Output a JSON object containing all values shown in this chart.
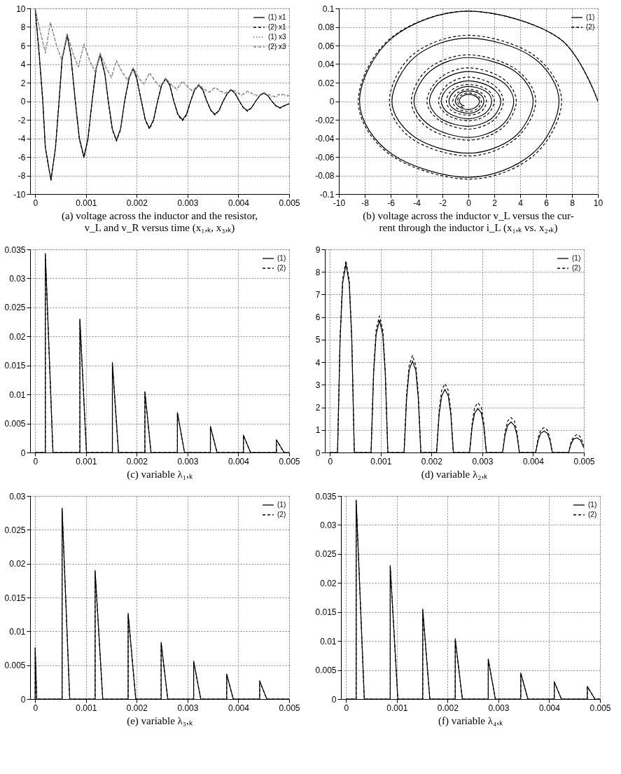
{
  "chart_data": [
    {
      "type": "line",
      "title": "(a) voltage across the inductor and the resistor,\nv_L and v_R versus time (x₁,ₖ, x₃,ₖ)",
      "xlim": [
        -0.0001,
        0.005
      ],
      "xticks": [
        0,
        0.001,
        0.002,
        0.003,
        0.004,
        0.005
      ],
      "ylim": [
        -10,
        10
      ],
      "yticks": [
        -10,
        -8,
        -6,
        -4,
        -2,
        0,
        2,
        4,
        6,
        8,
        10
      ],
      "grid": true,
      "legend": "top right",
      "x": [
        0,
        8e-05,
        0.00015,
        0.0002,
        0.00031,
        0.0004,
        0.00047,
        0.00053,
        0.00063,
        0.0007,
        0.00079,
        0.00087,
        0.00096,
        0.00104,
        0.00112,
        0.0012,
        0.00128,
        0.00137,
        0.00144,
        0.00152,
        0.0016,
        0.00168,
        0.00176,
        0.00185,
        0.00193,
        0.002,
        0.00209,
        0.00217,
        0.00225,
        0.00233,
        0.00241,
        0.00249,
        0.00257,
        0.00265,
        0.00273,
        0.00281,
        0.0029,
        0.00298,
        0.00306,
        0.00314,
        0.00322,
        0.0033,
        0.00338,
        0.00346,
        0.00354,
        0.00362,
        0.0037,
        0.00378,
        0.00386,
        0.00394,
        0.00402,
        0.0041,
        0.00418,
        0.00426,
        0.00434,
        0.00442,
        0.0045,
        0.00458,
        0.00466,
        0.00474,
        0.00482,
        0.0049,
        0.005
      ],
      "series": [
        {
          "name": "(1) x1",
          "color": "#000000",
          "line_style": "solid",
          "values": [
            10,
            5,
            0,
            -5,
            -8.5,
            -5,
            0,
            4.5,
            7.1,
            5,
            0,
            -4,
            -6.0,
            -4,
            0,
            3.5,
            5.0,
            3,
            0,
            -3,
            -4.2,
            -3,
            0,
            2.5,
            3.5,
            2.4,
            0,
            -2,
            -2.9,
            -2,
            0,
            1.7,
            2.4,
            1.7,
            0,
            -1.4,
            -2.0,
            -1.4,
            0,
            1.2,
            1.7,
            1.2,
            0,
            -1.0,
            -1.4,
            -1.0,
            0,
            0.8,
            1.2,
            0.8,
            0,
            -0.7,
            -1.0,
            -0.7,
            0,
            0.6,
            0.85,
            0.6,
            0,
            -0.5,
            -0.7,
            -0.5,
            -0.25
          ]
        },
        {
          "name": "(2) x1",
          "color": "#000000",
          "line_style": "dashed",
          "values": [
            10,
            5,
            0,
            -5,
            -8.5,
            -5,
            0,
            4.5,
            7.2,
            5,
            0,
            -4.1,
            -6.1,
            -4.1,
            0,
            3.6,
            5.1,
            3,
            0,
            -3.1,
            -4.3,
            -3.1,
            0,
            2.5,
            3.6,
            2.5,
            0,
            -2.1,
            -3.0,
            -2.1,
            0,
            1.8,
            2.5,
            1.8,
            0,
            -1.5,
            -2.1,
            -1.5,
            0,
            1.3,
            1.8,
            1.3,
            0,
            -1.0,
            -1.5,
            -1.0,
            0,
            0.8,
            1.3,
            0.8,
            0,
            -0.7,
            -1.1,
            -0.7,
            0,
            0.6,
            0.9,
            0.6,
            0,
            -0.5,
            -0.75,
            -0.5,
            -0.3
          ]
        },
        {
          "name": "(1) x3",
          "color": "#808080",
          "line_style": "dotted",
          "x": [
            0,
            0.0001,
            0.0002,
            0.0003,
            0.00042,
            0.00052,
            0.00063,
            0.00075,
            0.00085,
            0.00096,
            0.00108,
            0.00118,
            0.00128,
            0.0014,
            0.0015,
            0.0016,
            0.00172,
            0.00182,
            0.00193,
            0.00204,
            0.00214,
            0.00225,
            0.00236,
            0.00246,
            0.00257,
            0.00268,
            0.00279,
            0.0029,
            0.003,
            0.0031,
            0.00322,
            0.00333,
            0.00343,
            0.00354,
            0.00365,
            0.00375,
            0.00386,
            0.00397,
            0.00407,
            0.00418,
            0.00429,
            0.00439,
            0.0045,
            0.00461,
            0.00472,
            0.00482,
            0.005
          ],
          "values": [
            10,
            7.5,
            5.2,
            8.5,
            6.0,
            4.4,
            7.2,
            5.0,
            3.6,
            6.1,
            4.2,
            3.1,
            5.1,
            3.5,
            2.5,
            4.3,
            3.0,
            2.2,
            3.5,
            2.4,
            1.8,
            3.0,
            2.1,
            1.5,
            2.4,
            1.7,
            1.2,
            2.1,
            1.5,
            1.0,
            1.7,
            1.2,
            0.9,
            1.4,
            1.0,
            0.8,
            1.2,
            0.9,
            0.6,
            1.0,
            0.7,
            0.5,
            0.85,
            0.6,
            0.4,
            0.7,
            0.5
          ]
        },
        {
          "name": "(2) x3",
          "color": "#808080",
          "line_style": "dashed",
          "x": [
            0,
            0.0001,
            0.0002,
            0.0003,
            0.00042,
            0.00052,
            0.00063,
            0.00075,
            0.00085,
            0.00096,
            0.00108,
            0.00118,
            0.00128,
            0.0014,
            0.0015,
            0.0016,
            0.00172,
            0.00182,
            0.00193,
            0.00204,
            0.00214,
            0.00225,
            0.00236,
            0.00246,
            0.00257,
            0.00268,
            0.00279,
            0.0029,
            0.003,
            0.0031,
            0.00322,
            0.00333,
            0.00343,
            0.00354,
            0.00365,
            0.00375,
            0.00386,
            0.00397,
            0.00407,
            0.00418,
            0.00429,
            0.00439,
            0.0045,
            0.00461,
            0.00472,
            0.00482,
            0.005
          ],
          "values": [
            10,
            7.5,
            5.2,
            8.5,
            6.0,
            4.5,
            7.3,
            5.1,
            3.7,
            6.2,
            4.3,
            3.2,
            5.2,
            3.6,
            2.6,
            4.4,
            3.1,
            2.3,
            3.6,
            2.5,
            1.9,
            3.1,
            2.2,
            1.6,
            2.5,
            1.8,
            1.3,
            2.2,
            1.6,
            1.1,
            1.8,
            1.3,
            1.0,
            1.5,
            1.1,
            0.9,
            1.3,
            1.0,
            0.7,
            1.1,
            0.8,
            0.6,
            0.95,
            0.7,
            0.5,
            0.8,
            0.6
          ]
        }
      ]
    },
    {
      "type": "line",
      "title": "(b) voltage across the inductor v_L versus the cur-\nrent through the inductor i_L (x₁,ₖ vs. x₂,ₖ)",
      "xlim": [
        -10,
        10
      ],
      "xticks": [
        -10,
        -8,
        -6,
        -4,
        -2,
        0,
        2,
        4,
        6,
        8,
        10
      ],
      "ylim": [
        -0.1,
        0.1
      ],
      "yticks": [
        -0.1,
        -0.08,
        -0.06,
        -0.04,
        -0.02,
        0,
        0.02,
        0.04,
        0.06,
        0.08,
        0.1
      ],
      "grid": true,
      "legend": "top right",
      "series": [
        {
          "name": "(1)",
          "color": "#000000",
          "line_style": "solid",
          "x": [
            10,
            7,
            0,
            -5.9,
            -8.4,
            -5.9,
            0,
            4.9,
            7.0,
            4.9,
            0,
            -4.1,
            -5.9,
            -4.1,
            0,
            3.5,
            5.0,
            3.5,
            0,
            -2.9,
            -4.2,
            -2.9,
            0,
            2.5,
            3.5,
            2.5,
            0,
            -2.1,
            -3.0,
            -2.1,
            0,
            1.75,
            2.5,
            1.75,
            0,
            -1.5,
            -2.1,
            -1.5,
            0,
            1.3,
            1.8,
            1.3,
            0,
            -1.05,
            -1.5,
            -1.05,
            0,
            0.85,
            1.2,
            0.85,
            0,
            -0.7,
            -1.0,
            -0.7,
            0,
            0.6,
            0.85,
            0.6,
            0,
            -0.5,
            -0.7,
            -0.5,
            -0.3
          ],
          "values": [
            0,
            0.068,
            0.097,
            0.068,
            0,
            -0.057,
            -0.082,
            -0.057,
            0,
            0.048,
            0.068,
            0.048,
            0,
            -0.039,
            -0.056,
            -0.039,
            0,
            0.033,
            0.047,
            0.033,
            0,
            -0.027,
            -0.039,
            -0.027,
            0,
            0.022,
            0.032,
            0.022,
            0,
            -0.019,
            -0.027,
            -0.019,
            0,
            0.015,
            0.022,
            0.015,
            0,
            -0.013,
            -0.019,
            -0.013,
            0,
            0.011,
            0.016,
            0.011,
            0,
            -0.009,
            -0.013,
            -0.009,
            0,
            0.008,
            0.011,
            0.008,
            0,
            -0.006,
            -0.009,
            -0.006,
            0,
            0.005,
            0.0075,
            0.005,
            0,
            -0.004,
            -0.005
          ]
        },
        {
          "name": "(2)",
          "color": "#000000",
          "line_style": "dashed",
          "x": [
            10,
            7,
            0,
            -6.0,
            -8.5,
            -6.0,
            0,
            5.0,
            7.2,
            5.0,
            0,
            -4.3,
            -6.1,
            -4.3,
            0,
            3.6,
            5.2,
            3.6,
            0,
            -3.1,
            -4.4,
            -3.1,
            0,
            2.6,
            3.7,
            2.6,
            0,
            -2.2,
            -3.2,
            -2.2,
            0,
            1.9,
            2.7,
            1.9,
            0,
            -1.6,
            -2.3,
            -1.6,
            0,
            1.4,
            2.0,
            1.4,
            0,
            -1.2,
            -1.7,
            -1.2,
            0,
            1.0,
            1.4,
            1.0,
            0,
            -0.85,
            -1.2,
            -0.85,
            0,
            0.7,
            1.0,
            0.7,
            0,
            -0.6,
            -0.85,
            -0.6,
            -0.4
          ],
          "values": [
            0,
            0.068,
            0.097,
            0.068,
            0,
            -0.058,
            -0.084,
            -0.059,
            0,
            0.05,
            0.071,
            0.05,
            0,
            -0.041,
            -0.059,
            -0.041,
            0,
            0.035,
            0.05,
            0.035,
            0,
            -0.029,
            -0.042,
            -0.029,
            0,
            0.025,
            0.036,
            0.025,
            0,
            -0.021,
            -0.03,
            -0.021,
            0,
            0.018,
            0.026,
            0.018,
            0,
            -0.015,
            -0.021,
            -0.015,
            0,
            0.013,
            0.018,
            0.013,
            0,
            -0.011,
            -0.015,
            -0.011,
            0,
            0.009,
            0.013,
            0.009,
            0,
            -0.008,
            -0.011,
            -0.008,
            0,
            0.006,
            0.009,
            0.006,
            0,
            -0.005,
            -0.007
          ]
        }
      ]
    },
    {
      "type": "line",
      "title": "(c) variable λ₁,ₖ",
      "xlim": [
        -0.0001,
        0.005
      ],
      "xticks": [
        0,
        0.001,
        0.002,
        0.003,
        0.004,
        0.005
      ],
      "ylim": [
        0,
        0.035
      ],
      "yticks": [
        0,
        0.005,
        0.01,
        0.015,
        0.02,
        0.025,
        0.03,
        0.035
      ],
      "grid": true,
      "legend": "top right",
      "x": [
        0,
        0.0002,
        0.0002,
        0.00035,
        0.00088,
        0.00088,
        0.00101,
        0.00152,
        0.00152,
        0.00164,
        0.00216,
        0.00216,
        0.00228,
        0.0028,
        0.0028,
        0.00294,
        0.00345,
        0.00345,
        0.00358,
        0.0041,
        0.0041,
        0.00424,
        0.00475,
        0.00475,
        0.0049,
        0.005
      ],
      "series": [
        {
          "name": "(1)",
          "color": "#000000",
          "line_style": "solid",
          "values": [
            0,
            0,
            0.0343,
            0,
            0,
            0.023,
            0,
            0,
            0.0155,
            0,
            0,
            0.0105,
            0,
            0,
            0.0069,
            0,
            0,
            0.0045,
            0,
            0,
            0.003,
            0,
            0,
            0.0022,
            0,
            0
          ]
        },
        {
          "name": "(2)",
          "color": "#000000",
          "line_style": "dashed",
          "values": [
            0,
            0,
            0.034,
            0,
            0,
            0.0228,
            0,
            0,
            0.0153,
            0,
            0,
            0.0103,
            0,
            0,
            0.0068,
            0,
            0,
            0.0044,
            0,
            0,
            0.0029,
            0,
            0,
            0.0021,
            0,
            0
          ]
        }
      ]
    },
    {
      "type": "line",
      "title": "(d) variable λ₂,ₖ",
      "xlim": [
        -0.0001,
        0.005
      ],
      "xticks": [
        0,
        0.001,
        0.002,
        0.003,
        0.004,
        0.005
      ],
      "ylim": [
        0,
        9
      ],
      "yticks": [
        0,
        1,
        2,
        3,
        4,
        5,
        6,
        7,
        8,
        9
      ],
      "grid": true,
      "legend": "top right",
      "x": [
        0,
        0.00015,
        0.0002,
        0.00025,
        0.000315,
        0.00038,
        0.00043,
        0.00048,
        0.00081,
        0.00086,
        0.00091,
        0.000975,
        0.00104,
        0.00109,
        0.00114,
        0.00146,
        0.00151,
        0.00156,
        0.001625,
        0.00169,
        0.00174,
        0.00179,
        0.0021,
        0.00215,
        0.0022,
        0.002265,
        0.00233,
        0.00238,
        0.00243,
        0.00275,
        0.0028,
        0.00285,
        0.002915,
        0.00298,
        0.00303,
        0.00308,
        0.0034,
        0.00345,
        0.0035,
        0.003565,
        0.00363,
        0.00368,
        0.00373,
        0.00405,
        0.0041,
        0.00415,
        0.004215,
        0.00428,
        0.00433,
        0.00438,
        0.0047,
        0.00475,
        0.0048,
        0.004865,
        0.00493,
        0.005
      ],
      "series": [
        {
          "name": "(1)",
          "color": "#000000",
          "line_style": "solid",
          "values": [
            0,
            0,
            5.0,
            7.5,
            8.35,
            7.5,
            5.0,
            0,
            0,
            3.5,
            5.25,
            5.85,
            5.25,
            3.5,
            0,
            0,
            2.4,
            3.65,
            4.05,
            3.65,
            2.4,
            0,
            0,
            1.7,
            2.5,
            2.8,
            2.5,
            1.7,
            0,
            0,
            1.15,
            1.75,
            1.95,
            1.75,
            1.15,
            0,
            0,
            0.8,
            1.2,
            1.35,
            1.2,
            0.8,
            0,
            0,
            0.55,
            0.85,
            0.95,
            0.85,
            0.55,
            0,
            0,
            0.4,
            0.6,
            0.65,
            0.55,
            0.2
          ]
        },
        {
          "name": "(2)",
          "color": "#000000",
          "line_style": "dashed",
          "values": [
            0,
            0,
            5.1,
            7.65,
            8.5,
            7.65,
            5.1,
            0,
            0,
            3.6,
            5.45,
            6.05,
            5.45,
            3.6,
            0,
            0,
            2.6,
            3.85,
            4.3,
            3.85,
            2.6,
            0,
            0,
            1.85,
            2.75,
            3.05,
            2.75,
            1.85,
            0,
            0,
            1.3,
            2.0,
            2.2,
            2.0,
            1.3,
            0,
            0,
            0.95,
            1.4,
            1.55,
            1.4,
            0.95,
            0,
            0,
            0.65,
            1.0,
            1.1,
            1.0,
            0.65,
            0,
            0,
            0.5,
            0.7,
            0.8,
            0.7,
            0.3
          ]
        }
      ]
    },
    {
      "type": "line",
      "title": "(e) variable λ₃,ₖ",
      "xlim": [
        -0.0001,
        0.005
      ],
      "xticks": [
        0,
        0.001,
        0.002,
        0.003,
        0.004,
        0.005
      ],
      "ylim": [
        0,
        0.03
      ],
      "yticks": [
        0,
        0.005,
        0.01,
        0.015,
        0.02,
        0.025,
        0.03
      ],
      "grid": true,
      "legend": "top right",
      "x": [
        0,
        0,
        3e-05,
        0.00053,
        0.00053,
        0.00068,
        0.00118,
        0.00118,
        0.00133,
        0.00183,
        0.00183,
        0.00198,
        0.00248,
        0.00248,
        0.00261,
        0.00312,
        0.00312,
        0.00326,
        0.00377,
        0.00377,
        0.0039,
        0.00442,
        0.00442,
        0.00456,
        0.005
      ],
      "series": [
        {
          "name": "(1)",
          "color": "#000000",
          "line_style": "solid",
          "values": [
            0,
            0.0076,
            0,
            0,
            0.0282,
            0,
            0,
            0.019,
            0,
            0,
            0.0127,
            0,
            0,
            0.0084,
            0,
            0,
            0.0056,
            0,
            0,
            0.0037,
            0,
            0,
            0.0027,
            0,
            0
          ]
        },
        {
          "name": "(2)",
          "color": "#000000",
          "line_style": "dashed",
          "values": [
            0,
            0.0075,
            0,
            0,
            0.028,
            0,
            0,
            0.0188,
            0,
            0,
            0.0125,
            0,
            0,
            0.0082,
            0,
            0,
            0.0055,
            0,
            0,
            0.0036,
            0,
            0,
            0.0026,
            0,
            0
          ]
        }
      ]
    },
    {
      "type": "line",
      "title": "(f) variable λ₄,ₖ",
      "xlim": [
        -0.0001,
        0.005
      ],
      "xticks": [
        0,
        0.001,
        0.002,
        0.003,
        0.004,
        0.005
      ],
      "ylim": [
        0,
        0.035
      ],
      "yticks": [
        0,
        0.005,
        0.01,
        0.015,
        0.02,
        0.025,
        0.03,
        0.035
      ],
      "grid": true,
      "legend": "top right",
      "x": [
        0,
        0.0002,
        0.0002,
        0.00036,
        0.00087,
        0.00087,
        0.00102,
        0.00151,
        0.00151,
        0.00165,
        0.00215,
        0.00215,
        0.00229,
        0.0028,
        0.0028,
        0.00294,
        0.00344,
        0.00344,
        0.00358,
        0.0041,
        0.0041,
        0.00424,
        0.00475,
        0.00475,
        0.0049,
        0.005
      ],
      "series": [
        {
          "name": "(1)",
          "color": "#000000",
          "line_style": "solid",
          "values": [
            0,
            0,
            0.0343,
            0,
            0,
            0.023,
            0,
            0,
            0.0155,
            0,
            0,
            0.0104,
            0,
            0,
            0.0069,
            0,
            0,
            0.0045,
            0,
            0,
            0.003,
            0,
            0,
            0.0022,
            0,
            0
          ]
        },
        {
          "name": "(2)",
          "color": "#000000",
          "line_style": "dashed",
          "values": [
            0,
            0,
            0.0341,
            0,
            0,
            0.0228,
            0,
            0,
            0.0153,
            0,
            0,
            0.0102,
            0,
            0,
            0.0068,
            0,
            0,
            0.0044,
            0,
            0,
            0.0029,
            0,
            0,
            0.0021,
            0,
            0
          ]
        }
      ]
    }
  ]
}
